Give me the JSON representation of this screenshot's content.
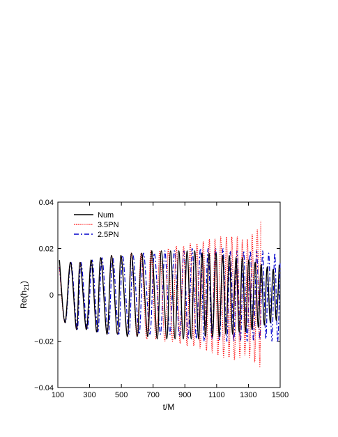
{
  "chart_data": {
    "type": "line",
    "xlabel": "t/M",
    "ylabel": "Re(h",
    "ylabel_sub": "21",
    "ylabel_close": ")",
    "xlim": [
      100,
      1500
    ],
    "ylim": [
      -0.04,
      0.04
    ],
    "x_ticks": [
      100,
      300,
      500,
      700,
      900,
      1100,
      1300,
      1500
    ],
    "x_tick_labels": [
      "100",
      "300",
      "500",
      "700",
      "900",
      "1100",
      "1300",
      "1500"
    ],
    "y_ticks": [
      -0.04,
      -0.02,
      0,
      0.02,
      0.04
    ],
    "y_tick_labels": [
      "−0.04",
      "−0.02",
      "0",
      "0.02",
      "0.04"
    ],
    "grid": false,
    "legend_position": "top-left",
    "series": [
      {
        "name": "Num",
        "color": "#000000",
        "style": "solid",
        "x": [
          110,
          145,
          180,
          218,
          240,
          280,
          310,
          345,
          370,
          410,
          438,
          475,
          498,
          538,
          564,
          600,
          628,
          666,
          692,
          726,
          752,
          786,
          810,
          838,
          862,
          890,
          914,
          940,
          962,
          986,
          1008,
          1030,
          1052,
          1074,
          1096,
          1116,
          1138,
          1158,
          1180,
          1200,
          1222,
          1242,
          1262,
          1282,
          1302,
          1322,
          1342,
          1362,
          1380,
          1400,
          1418,
          1438,
          1456,
          1476,
          1494
        ],
        "y": [
          0.015,
          -0.012,
          0.014,
          -0.015,
          0.014,
          -0.015,
          0.015,
          -0.016,
          0.016,
          -0.017,
          0.017,
          -0.017,
          0.017,
          -0.018,
          0.018,
          -0.018,
          0.018,
          -0.018,
          0.019,
          -0.019,
          0.019,
          -0.019,
          0.019,
          -0.019,
          0.019,
          -0.019,
          0.019,
          -0.019,
          0.019,
          -0.019,
          0.018,
          -0.018,
          0.018,
          -0.018,
          0.018,
          -0.018,
          0.017,
          -0.017,
          0.017,
          -0.017,
          0.016,
          -0.016,
          0.016,
          -0.016,
          0.015,
          -0.015,
          0.014,
          -0.014,
          0.013,
          -0.013,
          0.012,
          -0.012,
          0.011,
          -0.011,
          0.013
        ]
      },
      {
        "name": "3.5PN",
        "color": "#ff0000",
        "style": "dotted",
        "x": [
          110,
          145,
          180,
          218,
          240,
          280,
          310,
          345,
          370,
          410,
          438,
          475,
          498,
          538,
          562,
          598,
          624,
          660,
          686,
          718,
          742,
          774,
          796,
          822,
          846,
          870,
          892,
          914,
          934,
          956,
          976,
          996,
          1016,
          1036,
          1054,
          1072,
          1090,
          1108,
          1126,
          1144,
          1162,
          1178,
          1196,
          1212,
          1230,
          1246,
          1262,
          1278,
          1294,
          1308,
          1324,
          1340,
          1356,
          1372,
          1378
        ],
        "y": [
          0.012,
          -0.012,
          0.014,
          -0.015,
          0.014,
          -0.015,
          0.015,
          -0.016,
          0.016,
          -0.017,
          0.017,
          -0.017,
          0.017,
          -0.018,
          0.018,
          -0.018,
          0.018,
          -0.019,
          0.019,
          -0.019,
          0.019,
          -0.02,
          0.02,
          -0.02,
          0.021,
          -0.021,
          0.021,
          -0.022,
          0.022,
          -0.022,
          0.022,
          -0.023,
          0.023,
          -0.024,
          0.024,
          -0.025,
          0.024,
          -0.026,
          0.025,
          -0.027,
          0.025,
          -0.027,
          0.025,
          -0.028,
          0.025,
          -0.027,
          0.024,
          -0.026,
          0.024,
          -0.027,
          0.026,
          -0.029,
          0.028,
          -0.031,
          0.032
        ]
      },
      {
        "name": "2.5PN",
        "color": "#0000cc",
        "style": "dashdot",
        "x": [
          110,
          147,
          183,
          222,
          246,
          286,
          316,
          352,
          378,
          418,
          446,
          484,
          508,
          548,
          574,
          612,
          640,
          680,
          708,
          746,
          774,
          806,
          834,
          866,
          894,
          920,
          946,
          972,
          998,
          1022,
          1046,
          1070,
          1094,
          1118,
          1140,
          1164,
          1186,
          1208,
          1228,
          1250,
          1270,
          1292,
          1312,
          1332,
          1352,
          1372,
          1390,
          1410,
          1428,
          1448,
          1466,
          1484,
          1500
        ],
        "y": [
          0.012,
          -0.012,
          0.014,
          -0.015,
          0.014,
          -0.015,
          0.015,
          -0.016,
          0.016,
          -0.017,
          0.016,
          -0.017,
          0.017,
          -0.017,
          0.017,
          -0.017,
          0.018,
          -0.017,
          0.018,
          -0.017,
          0.019,
          -0.017,
          0.019,
          -0.018,
          0.019,
          -0.019,
          0.02,
          -0.019,
          0.02,
          -0.02,
          0.02,
          -0.019,
          0.02,
          -0.02,
          0.02,
          -0.02,
          0.019,
          -0.02,
          0.019,
          -0.02,
          0.019,
          -0.02,
          0.019,
          -0.02,
          0.019,
          -0.019,
          0.019,
          -0.019,
          0.018,
          -0.02,
          0.018,
          -0.02,
          0.014
        ]
      }
    ]
  }
}
